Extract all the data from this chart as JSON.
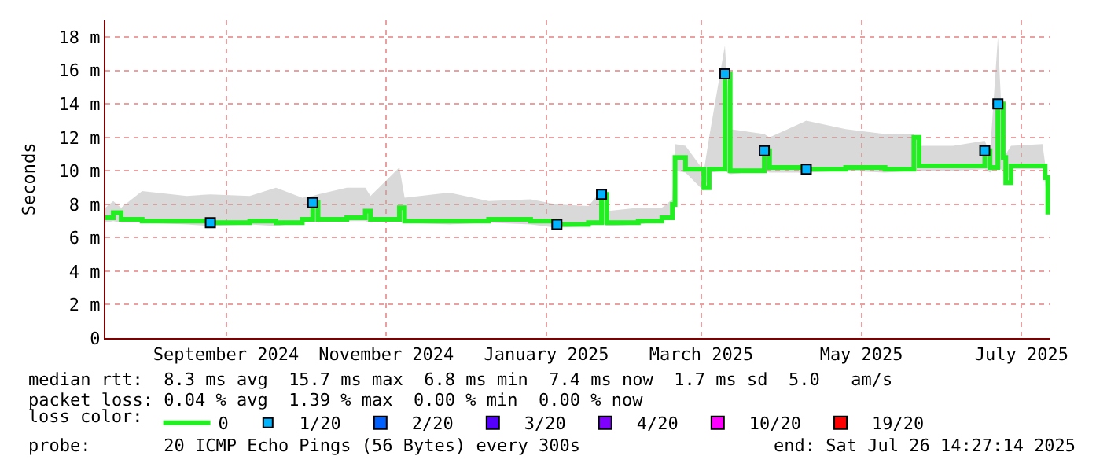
{
  "chart_data": {
    "type": "step",
    "ylabel": "Seconds",
    "x": [
      "2024-08-01",
      "2024-08-04",
      "2024-08-07",
      "2024-08-15",
      "2024-09-01",
      "2024-09-10",
      "2024-09-25",
      "2024-10-05",
      "2024-10-15",
      "2024-10-19",
      "2024-10-21",
      "2024-11-01",
      "2024-11-08",
      "2024-11-10",
      "2024-11-21",
      "2024-11-23",
      "2024-12-10",
      "2024-12-25",
      "2025-01-10",
      "2025-01-20",
      "2025-02-01",
      "2025-02-06",
      "2025-02-08",
      "2025-02-20",
      "2025-03-01",
      "2025-03-05",
      "2025-03-06",
      "2025-03-10",
      "2025-03-17",
      "2025-03-19",
      "2025-03-25",
      "2025-03-27",
      "2025-04-09",
      "2025-04-11",
      "2025-04-25",
      "2025-05-10",
      "2025-05-25",
      "2025-06-05",
      "2025-06-07",
      "2025-06-20",
      "2025-07-02",
      "2025-07-04",
      "2025-07-07",
      "2025-07-09",
      "2025-07-10",
      "2025-07-12",
      "2025-07-24",
      "2025-07-25",
      "2025-07-26"
    ],
    "series": [
      {
        "name": "0",
        "color": "#22ee22",
        "values": [
          7.2,
          7.5,
          7.1,
          7.0,
          7.0,
          6.9,
          7.0,
          6.9,
          7.1,
          8.1,
          7.1,
          7.2,
          7.6,
          7.1,
          7.8,
          7.0,
          7.0,
          7.1,
          7.0,
          6.8,
          6.9,
          8.6,
          6.9,
          7.0,
          7.2,
          8.0,
          10.8,
          10.1,
          9.0,
          10.1,
          15.8,
          10.0,
          11.2,
          10.2,
          10.1,
          10.2,
          10.1,
          12.0,
          10.3,
          10.3,
          11.2,
          10.2,
          14.0,
          10.8,
          9.3,
          10.3,
          10.3,
          9.6,
          7.4
        ],
        "lower": [
          6.9,
          7.0,
          6.9,
          6.9,
          6.8,
          6.7,
          6.8,
          6.7,
          6.9,
          7.0,
          6.9,
          7.0,
          7.0,
          6.9,
          7.0,
          6.9,
          6.8,
          6.9,
          6.8,
          6.6,
          6.7,
          6.9,
          6.7,
          6.8,
          7.0,
          7.5,
          10.0,
          9.9,
          8.8,
          9.9,
          10.0,
          9.8,
          10.0,
          9.9,
          9.9,
          10.0,
          9.9,
          10.0,
          10.0,
          10.0,
          10.1,
          9.9,
          10.2,
          10.0,
          9.1,
          10.1,
          10.1,
          9.4,
          7.2
        ],
        "upper": [
          7.8,
          8.2,
          7.8,
          8.8,
          8.5,
          8.6,
          8.5,
          9.0,
          8.4,
          8.5,
          8.6,
          9.0,
          9.0,
          8.5,
          10.2,
          8.4,
          8.7,
          8.2,
          8.3,
          8.0,
          7.9,
          8.8,
          7.6,
          7.8,
          7.8,
          8.3,
          11.6,
          11.5,
          10.0,
          12.0,
          17.5,
          12.5,
          12.2,
          12.0,
          13.0,
          12.5,
          12.2,
          12.2,
          11.5,
          11.5,
          11.8,
          11.0,
          18.0,
          11.5,
          11.0,
          11.5,
          11.6,
          10.4,
          7.6
        ]
      },
      {
        "name": "1/20",
        "type": "scatter",
        "marker": "square",
        "color": "#00b4ff",
        "x": [
          "2024-09-10",
          "2024-10-19",
          "2025-01-20",
          "2025-02-06",
          "2025-03-25",
          "2025-04-09",
          "2025-04-25",
          "2025-07-02",
          "2025-07-07"
        ],
        "values": [
          6.9,
          8.1,
          6.8,
          8.6,
          15.8,
          11.2,
          10.1,
          11.2,
          14.0
        ]
      },
      {
        "name": "2/20",
        "type": "scatter",
        "marker": "square",
        "color": "#0060ff",
        "values": [
          null,
          null,
          null,
          null,
          null,
          null,
          null,
          null,
          null,
          null,
          null,
          null,
          null,
          null,
          null,
          null,
          null,
          null,
          null,
          null,
          null,
          null,
          null,
          null,
          null,
          null,
          null,
          null,
          null,
          null,
          null,
          null,
          null,
          null,
          null,
          null,
          null,
          null,
          null,
          null,
          null,
          null,
          null,
          null,
          null,
          null,
          null,
          null,
          null
        ]
      },
      {
        "name": "3/20",
        "type": "scatter",
        "marker": "square",
        "color": "#5500ff",
        "values": [
          null,
          null,
          null,
          null,
          null,
          null,
          null,
          null,
          null,
          null,
          null,
          null,
          null,
          null,
          null,
          null,
          null,
          null,
          null,
          null,
          null,
          null,
          null,
          null,
          null,
          null,
          null,
          null,
          null,
          null,
          null,
          null,
          null,
          null,
          null,
          null,
          null,
          null,
          null,
          null,
          null,
          null,
          null,
          null,
          null,
          null,
          null,
          null,
          null
        ]
      },
      {
        "name": "4/20",
        "type": "scatter",
        "marker": "square",
        "color": "#8000ff",
        "values": [
          null,
          null,
          null,
          null,
          null,
          null,
          null,
          null,
          null,
          null,
          null,
          null,
          null,
          null,
          null,
          null,
          null,
          null,
          null,
          null,
          null,
          null,
          null,
          null,
          null,
          null,
          null,
          null,
          null,
          null,
          null,
          null,
          null,
          null,
          null,
          null,
          null,
          null,
          null,
          null,
          null,
          null,
          null,
          null,
          null,
          null,
          null,
          null,
          null
        ]
      },
      {
        "name": "10/20",
        "type": "scatter",
        "marker": "square",
        "color": "#ff00ff",
        "values": [
          null,
          null,
          null,
          null,
          null,
          null,
          null,
          null,
          null,
          null,
          null,
          null,
          null,
          null,
          null,
          null,
          null,
          null,
          null,
          null,
          null,
          null,
          null,
          null,
          null,
          null,
          null,
          null,
          null,
          null,
          null,
          null,
          null,
          null,
          null,
          null,
          null,
          null,
          null,
          null,
          null,
          null,
          null,
          null,
          null,
          null,
          null,
          null,
          null
        ]
      },
      {
        "name": "19/20",
        "type": "scatter",
        "marker": "square",
        "color": "#ff0000",
        "values": [
          null,
          null,
          null,
          null,
          null,
          null,
          null,
          null,
          null,
          null,
          null,
          null,
          null,
          null,
          null,
          null,
          null,
          null,
          null,
          null,
          null,
          null,
          null,
          null,
          null,
          null,
          null,
          null,
          null,
          null,
          null,
          null,
          null,
          null,
          null,
          null,
          null,
          null,
          null,
          null,
          null,
          null,
          null,
          null,
          null,
          null,
          null,
          null,
          null
        ]
      }
    ],
    "xlim": [
      "2024-08-01",
      "2025-07-27"
    ],
    "xticks": [
      {
        "value": "2024-09-16",
        "label": "September 2024"
      },
      {
        "value": "2024-11-16",
        "label": "November 2024"
      },
      {
        "value": "2025-01-16",
        "label": "January 2025"
      },
      {
        "value": "2025-03-16",
        "label": "March 2025"
      },
      {
        "value": "2025-05-16",
        "label": "May 2025"
      },
      {
        "value": "2025-07-16",
        "label": "July 2025"
      }
    ],
    "ylim": [
      0,
      19
    ],
    "yticks": [
      0,
      {
        "value": 2,
        "label": "2 m"
      },
      {
        "value": 4,
        "label": "4 m"
      },
      {
        "value": 6,
        "label": "6 m"
      },
      {
        "value": 8,
        "label": "8 m"
      },
      {
        "value": 10,
        "label": "10 m"
      },
      {
        "value": 12,
        "label": "12 m"
      },
      {
        "value": 14,
        "label": "14 m"
      },
      {
        "value": 16,
        "label": "16 m"
      },
      {
        "value": 18,
        "label": "18 m"
      }
    ],
    "grid": true,
    "legend": "bottom",
    "legend_title": "loss color:",
    "annotations": [
      "median rtt:  8.3 ms avg  15.7 ms max  6.8 ms min  7.4 ms now  1.7 ms sd  5.0   am/s",
      "packet loss: 0.04 % avg  1.39 % max  0.00 % min  0.00 % now",
      "probe:       20 ICMP Echo Pings (56 Bytes) every 300s",
      "end: Sat Jul 26 14:27:14 2025"
    ]
  }
}
